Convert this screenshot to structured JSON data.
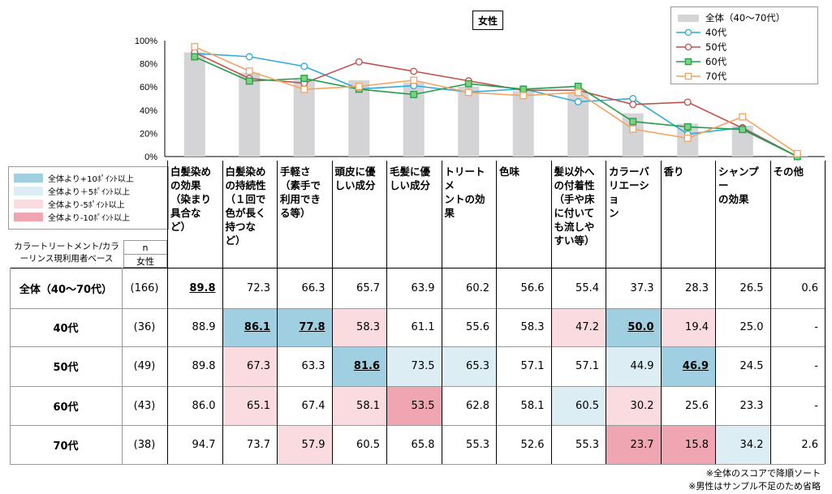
{
  "chart_data": {
    "type": "bar",
    "title": "女性",
    "categories": [
      "白髪染めの効果（染まり具合など）",
      "白髪染めの持続性（１回で色が長く持つなど）",
      "手軽さ（素手で利用できる等）",
      "頭皮に優しい成分",
      "毛髪に優しい成分",
      "トリートメントの効果",
      "色味",
      "髪以外への付着性（手や床に付いても流しやすい等）",
      "カラーバリエーション",
      "香り",
      "シャンプーの効果",
      "その他"
    ],
    "y_ticks": [
      "100%",
      "80%",
      "60%",
      "40%",
      "20%",
      "0%"
    ],
    "ylim": [
      0,
      100
    ],
    "series": [
      {
        "name": "全体（40～70代）",
        "kind": "bar",
        "color": "#d4d4d6",
        "n": "(166)",
        "values": [
          89.8,
          72.3,
          66.3,
          65.7,
          63.9,
          60.2,
          56.6,
          55.4,
          37.3,
          28.3,
          26.5,
          0.6
        ]
      },
      {
        "name": "40代",
        "kind": "line",
        "color": "#2eaadc",
        "marker": "circle",
        "n": "(36)",
        "values": [
          88.9,
          86.1,
          77.8,
          58.3,
          61.1,
          55.6,
          58.3,
          47.2,
          50.0,
          19.4,
          25.0,
          null
        ]
      },
      {
        "name": "50代",
        "kind": "line",
        "color": "#c0504d",
        "marker": "circle",
        "n": "(49)",
        "values": [
          89.8,
          67.3,
          63.3,
          81.6,
          73.5,
          65.3,
          57.1,
          57.1,
          44.9,
          46.9,
          24.5,
          null
        ]
      },
      {
        "name": "60代",
        "kind": "line",
        "color": "#21a049",
        "marker": "square",
        "n": "(43)",
        "values": [
          86.0,
          65.1,
          67.4,
          58.1,
          53.5,
          62.8,
          58.1,
          60.5,
          30.2,
          25.6,
          23.3,
          null
        ]
      },
      {
        "name": "70代",
        "kind": "line",
        "color": "#f4a460",
        "marker": "square",
        "n": "(38)",
        "values": [
          94.7,
          73.7,
          57.9,
          60.5,
          65.8,
          55.3,
          52.6,
          55.3,
          23.7,
          15.8,
          34.2,
          2.6
        ]
      }
    ],
    "line_endpoints": {
      "その他": 0
    }
  },
  "table": {
    "header_lines": [
      [
        "白髪染め",
        "の効果",
        "（染まり",
        "具合な",
        "ど）"
      ],
      [
        "白髪染め",
        "の持続性",
        "（１回で",
        "色が長く",
        "持つな",
        "ど）"
      ],
      [
        "手軽さ",
        "（素手で",
        "利用でき",
        "る等）"
      ],
      [
        "頭皮に優",
        "しい成分"
      ],
      [
        "毛髪に優",
        "しい成分"
      ],
      [
        "トリートメ",
        "ントの効",
        "果"
      ],
      [
        "色味"
      ],
      [
        "髪以外へ",
        "の付着性",
        "（手や床",
        "に付いて",
        "も流しや",
        "すい等）"
      ],
      [
        "カラーバ",
        "リエーショ",
        "ン"
      ],
      [
        "香り"
      ],
      [
        "シャンプー",
        "の効果"
      ],
      [
        "その他"
      ]
    ],
    "base_label": "カラートリートメント/カラーリンス現利用者ベース",
    "n_header": "n",
    "n_sub": "女性",
    "rows": [
      {
        "label": "全体（40～70代）",
        "n": "(166)",
        "cells": [
          "89.8",
          "72.3",
          "66.3",
          "65.7",
          "63.9",
          "60.2",
          "56.6",
          "55.4",
          "37.3",
          "28.3",
          "26.5",
          "0.6"
        ],
        "highlight": [
          "top",
          "",
          "",
          "",
          "",
          "",
          "",
          "",
          "",
          "",
          "",
          ""
        ]
      },
      {
        "label": "40代",
        "n": "(36)",
        "cells": [
          "88.9",
          "86.1",
          "77.8",
          "58.3",
          "61.1",
          "55.6",
          "58.3",
          "47.2",
          "50.0",
          "19.4",
          "25.0",
          "-"
        ],
        "highlight": [
          "",
          "p10top",
          "p10top",
          "m5",
          "",
          "",
          "",
          "m5",
          "p10top",
          "m5",
          "",
          ""
        ]
      },
      {
        "label": "50代",
        "n": "(49)",
        "cells": [
          "89.8",
          "67.3",
          "63.3",
          "81.6",
          "73.5",
          "65.3",
          "57.1",
          "57.1",
          "44.9",
          "46.9",
          "24.5",
          "-"
        ],
        "highlight": [
          "",
          "m5",
          "",
          "p10top",
          "p5",
          "p5",
          "",
          "",
          "p5",
          "p10top",
          "",
          ""
        ]
      },
      {
        "label": "60代",
        "n": "(43)",
        "cells": [
          "86.0",
          "65.1",
          "67.4",
          "58.1",
          "53.5",
          "62.8",
          "58.1",
          "60.5",
          "30.2",
          "25.6",
          "23.3",
          "-"
        ],
        "highlight": [
          "",
          "m5",
          "",
          "m5",
          "m10",
          "",
          "",
          "p5",
          "m5",
          "",
          "",
          ""
        ]
      },
      {
        "label": "70代",
        "n": "(38)",
        "cells": [
          "94.7",
          "73.7",
          "57.9",
          "60.5",
          "65.8",
          "55.3",
          "52.6",
          "55.3",
          "23.7",
          "15.8",
          "34.2",
          "2.6"
        ],
        "highlight": [
          "",
          "",
          "m5",
          "",
          "",
          "",
          "",
          "",
          "m10",
          "m10",
          "p5",
          ""
        ]
      }
    ]
  },
  "color_legend": [
    {
      "label": "全体より+10ﾎﾟｲﾝﾄ以上",
      "color": "#9fcfe0"
    },
    {
      "label": "全体より＋5ﾎﾟｲﾝﾄ以上",
      "color": "#dcedf3"
    },
    {
      "label": "全体より-5ﾎﾟｲﾝﾄ以上",
      "color": "#fadbe0"
    },
    {
      "label": "全体より-10ﾎﾟｲﾝﾄ以上",
      "color": "#f0a6b2"
    }
  ],
  "notes": [
    "※全体のスコアで降順ソート",
    "※男性はサンプル不足のため省略"
  ]
}
